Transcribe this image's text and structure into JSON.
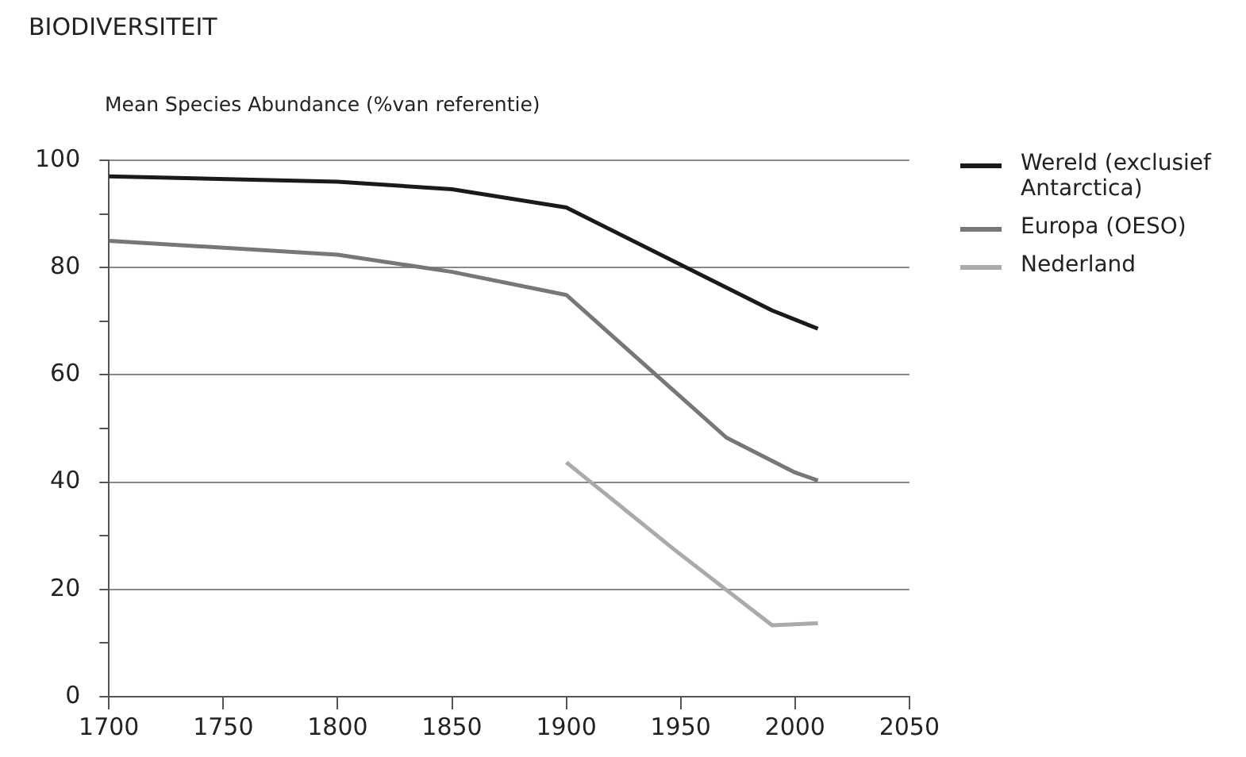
{
  "chart_data": {
    "type": "line",
    "title": "BIODIVERSITEIT",
    "ylabel": "Mean Species Abundance (%van referentie)",
    "series": [
      {
        "name": "Wereld (exclusief Antarctica)",
        "color": "#1a1a1a",
        "x": [
          1700,
          1800,
          1850,
          1900,
          1990,
          2010
        ],
        "values": [
          97,
          96,
          94.6,
          91.2,
          72,
          68.6
        ]
      },
      {
        "name": "Europa (OESO)",
        "color": "#777777",
        "x": [
          1700,
          1800,
          1850,
          1900,
          1970,
          2000,
          2010
        ],
        "values": [
          85,
          82.4,
          79.2,
          74.9,
          48.3,
          41.8,
          40.3
        ]
      },
      {
        "name": "Nederland",
        "color": "#aaaaaa",
        "x": [
          1900,
          1947,
          1990,
          2010
        ],
        "values": [
          43.7,
          27.5,
          13.3,
          13.7
        ]
      }
    ],
    "xlim": [
      1700,
      2050
    ],
    "xticks": [
      1700,
      1750,
      1800,
      1850,
      1900,
      1950,
      2000,
      2050
    ],
    "ylim": [
      0,
      100
    ],
    "yticks": [
      0,
      {
        "value": 10,
        "label": null
      },
      20,
      {
        "value": 30,
        "label": null
      },
      40,
      {
        "value": 50,
        "label": null
      },
      60,
      {
        "value": 70,
        "label": null
      },
      80,
      {
        "value": 90,
        "label": null
      },
      100
    ],
    "grid": "y",
    "legend": "right",
    "marker": "none",
    "line_style": "solid"
  }
}
